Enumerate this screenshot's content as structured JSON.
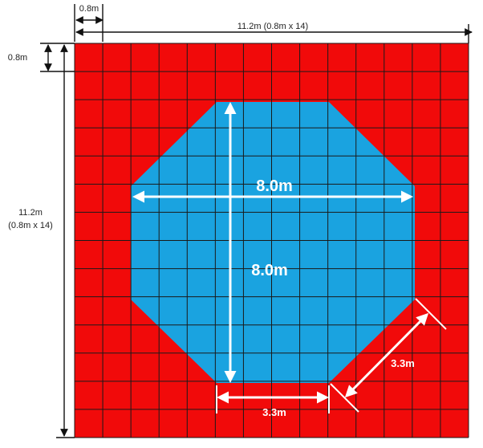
{
  "colors": {
    "outer_fill": "#f10a0a",
    "inner_fill": "#1aa3e0",
    "grid_line": "#1a1a1a",
    "dimension_line": "#111111",
    "arrow_white": "#ffffff"
  },
  "grid": {
    "cells_per_side": 14,
    "cell_size": "0.8m"
  },
  "labels": {
    "cell_width": "0.8m",
    "total_width": "11.2m (0.8m x 14)",
    "cell_height": "0.8m",
    "total_height_line1": "11.2m",
    "total_height_line2": "(0.8m x 14)",
    "octagon_width": "8.0m",
    "octagon_height": "8.0m",
    "bottom_edge": "3.3m",
    "diagonal_edge": "3.3m"
  }
}
